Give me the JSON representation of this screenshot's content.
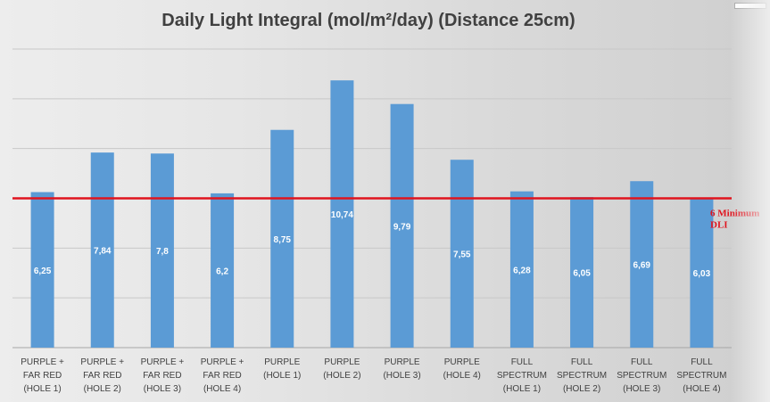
{
  "chart_data": {
    "type": "bar",
    "title": "Daily Light Integral (mol/m²/day) (Distance 25cm)",
    "categories": [
      [
        "PURPLE +",
        "FAR RED",
        "(HOLE 1)"
      ],
      [
        "PURPLE +",
        "FAR RED",
        "(HOLE 2)"
      ],
      [
        "PURPLE +",
        "FAR RED",
        "(HOLE 3)"
      ],
      [
        "PURPLE +",
        "FAR RED",
        "(HOLE 4)"
      ],
      [
        "PURPLE",
        "(HOLE 1)"
      ],
      [
        "PURPLE",
        "(HOLE 2)"
      ],
      [
        "PURPLE",
        "(HOLE 3)"
      ],
      [
        "PURPLE",
        "(HOLE 4)"
      ],
      [
        "FULL",
        "SPECTRUM",
        "(HOLE 1)"
      ],
      [
        "FULL",
        "SPECTRUM",
        "(HOLE 2)"
      ],
      [
        "FULL",
        "SPECTRUM",
        "(HOLE 3)"
      ],
      [
        "FULL",
        "SPECTRUM",
        "(HOLE 4)"
      ]
    ],
    "values": [
      6.25,
      7.84,
      7.8,
      6.2,
      8.75,
      10.74,
      9.79,
      7.55,
      6.28,
      6.05,
      6.69,
      6.03
    ],
    "data_labels": [
      "6,25",
      "7,84",
      "7,8",
      "6,2",
      "8,75",
      "10,74",
      "9,79",
      "7,55",
      "6,28",
      "6,05",
      "6,69",
      "6,03"
    ],
    "ylim": [
      0,
      12
    ],
    "gridlines": [
      0,
      2,
      4,
      6,
      8,
      10,
      12
    ],
    "grid": true,
    "y_tick_labels_shown": false,
    "bar_color": "#5b9bd5",
    "reference_line": {
      "value": 6,
      "label": [
        "6 Minimum",
        "DLI"
      ],
      "color": "#e0141e"
    }
  }
}
